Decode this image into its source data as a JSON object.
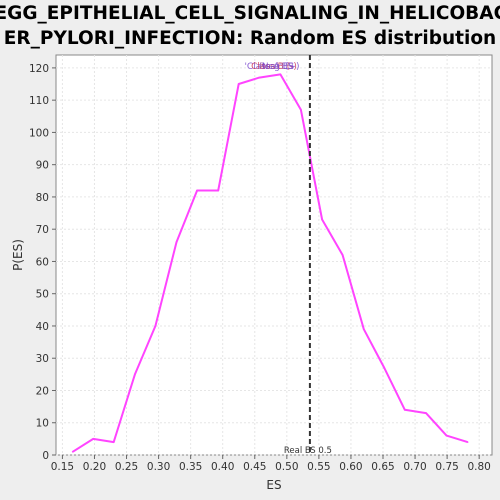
{
  "chart_data": {
    "type": "line",
    "title_line1": "KEGG_EPITHELIAL_CELL_SIGNALING_IN_HELICOBACT",
    "title_line2": "ER_PYLORI_INFECTION: Random ES distribution",
    "xlabel": "ES",
    "ylabel": "P(ES)",
    "xlim": [
      0.14,
      0.82
    ],
    "ylim": [
      0,
      124
    ],
    "xticks": [
      0.15,
      0.2,
      0.25,
      0.3,
      0.35,
      0.4,
      0.45,
      0.5,
      0.55,
      0.6,
      0.65,
      0.7,
      0.75,
      0.8
    ],
    "xtick_labels": [
      "0.15",
      "0.20",
      "0.25",
      "0.30",
      "0.35",
      "0.40",
      "0.45",
      "0.50",
      "0.55",
      "0.60",
      "0.65",
      "0.70",
      "0.75",
      "0.80"
    ],
    "yticks": [
      0,
      10,
      20,
      30,
      40,
      50,
      60,
      70,
      80,
      90,
      100,
      110,
      120
    ],
    "ytick_labels": [
      "0",
      "10",
      "20",
      "30",
      "40",
      "50",
      "60",
      "70",
      "80",
      "90",
      "100",
      "110",
      "120"
    ],
    "grid": true,
    "series": [
      {
        "color": "#ff44ff",
        "x": [
          0.166,
          0.198,
          0.23,
          0.263,
          0.295,
          0.328,
          0.36,
          0.393,
          0.425,
          0.457,
          0.49,
          0.522,
          0.555,
          0.587,
          0.62,
          0.652,
          0.684,
          0.717,
          0.749,
          0.782
        ],
        "y": [
          1,
          5,
          4,
          25,
          40,
          66,
          82,
          82,
          115,
          117,
          118,
          107,
          73,
          62,
          39,
          27,
          14,
          13,
          6,
          4
        ]
      }
    ],
    "real_es": {
      "value": 0.536,
      "label": "Real ES 0.5",
      "color": "#333333"
    },
    "legend": {
      "placement": "top-center",
      "entries": [
        {
          "text": "'Class A' (+)",
          "color": "#7744cc"
        },
        {
          "text": "Class B (-)",
          "color": "#cc3355"
        },
        {
          "text": "Real ES",
          "color": "#9955aa"
        },
        {
          "text": "Neg ES",
          "color": "#7744cc"
        }
      ]
    }
  }
}
